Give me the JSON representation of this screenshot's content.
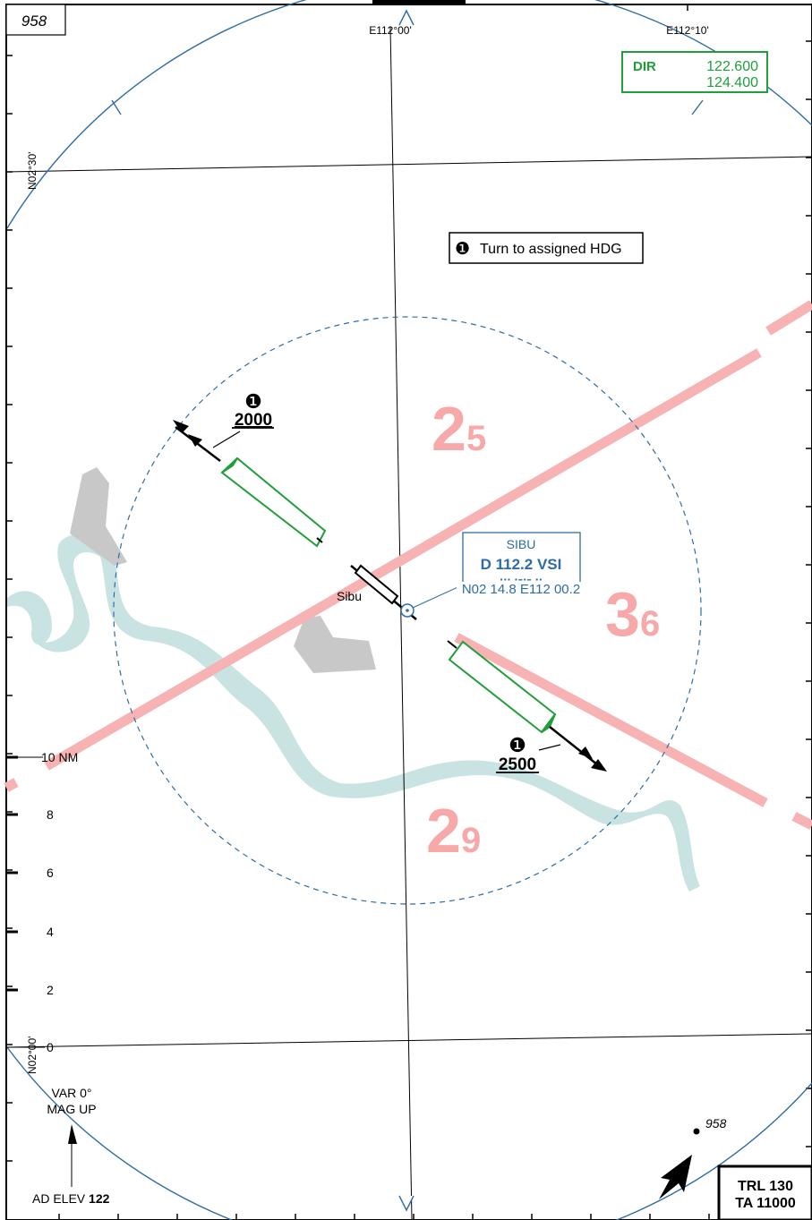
{
  "header": {
    "msa_label": "958"
  },
  "coordinates": {
    "lon_west": "E112°00'",
    "lon_east": "E112°10'",
    "lat_north": "N02°30'",
    "lat_south": "N02°00'"
  },
  "frequency_box": {
    "service": "DIR",
    "freq_1": "122.600",
    "freq_2": "124.400"
  },
  "note_box": {
    "symbol": "❶",
    "text": "Turn to assigned HDG"
  },
  "navaid": {
    "name": "SIBU",
    "ident": "D 112.2 VSI",
    "morse": "··· ·–·– ··",
    "position": "N02 14.8 E112 00.2"
  },
  "airport": {
    "name": "Sibu"
  },
  "departures": [
    {
      "symbol": "❶",
      "altitude": "2000"
    },
    {
      "symbol": "❶",
      "altitude": "2500"
    }
  ],
  "msa_sectors": [
    {
      "big": "2",
      "small": "5"
    },
    {
      "big": "3",
      "small": "6"
    },
    {
      "big": "2",
      "small": "9"
    }
  ],
  "distance_scale": {
    "label_10": "10 NM",
    "label_8": "8",
    "label_6": "6",
    "label_4": "4",
    "label_2": "2",
    "label_0": "0"
  },
  "variation": {
    "line1": "VAR 0°",
    "line2": "MAG UP"
  },
  "aerodrome": {
    "label": "AD ELEV ",
    "value": "122"
  },
  "spot_elevation": "958",
  "transition": {
    "line1": "TRL 130",
    "line2": "TA 11000"
  },
  "colors": {
    "blue": "#2e6ca5",
    "green": "#1f9e3a",
    "msa_pink": "#f7a9a9",
    "river": "#c9e3e3",
    "urban": "#c8c8c8"
  }
}
